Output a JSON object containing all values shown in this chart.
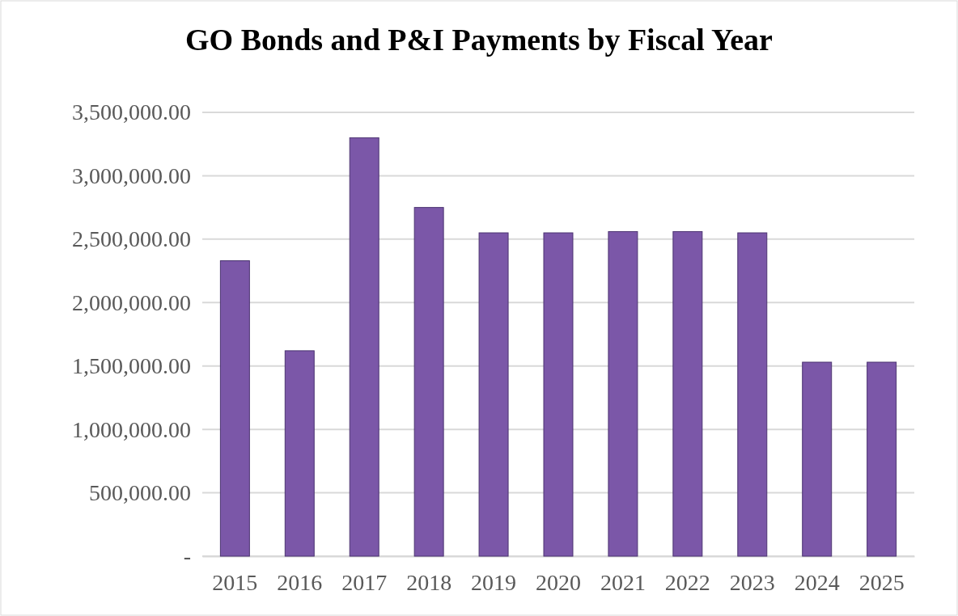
{
  "chart_data": {
    "type": "bar",
    "title": "GO Bonds and P&I Payments by Fiscal Year",
    "categories": [
      "2015",
      "2016",
      "2017",
      "2018",
      "2019",
      "2020",
      "2021",
      "2022",
      "2023",
      "2024",
      "2025"
    ],
    "values": [
      2330000,
      1620000,
      3300000,
      2750000,
      2550000,
      2550000,
      2560000,
      2560000,
      2550000,
      1530000,
      1530000
    ],
    "color": "#7b57a8",
    "ylim": [
      0,
      3500000
    ],
    "yticks": [
      {
        "value": 0,
        "label": "-"
      },
      {
        "value": 500000,
        "label": "500,000.00"
      },
      {
        "value": 1000000,
        "label": "1,000,000.00"
      },
      {
        "value": 1500000,
        "label": "1,500,000.00"
      },
      {
        "value": 2000000,
        "label": "2,000,000.00"
      },
      {
        "value": 2500000,
        "label": "2,500,000.00"
      },
      {
        "value": 3000000,
        "label": "3,000,000.00"
      },
      {
        "value": 3500000,
        "label": "3,500,000.00"
      }
    ],
    "grid": "y"
  }
}
